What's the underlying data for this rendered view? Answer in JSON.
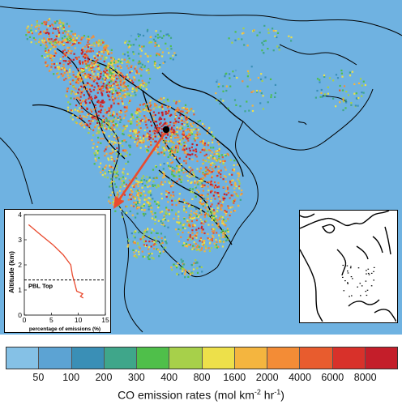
{
  "colors": {
    "ocean": "#6fb2e1",
    "land": "#6fb2e1",
    "coast": "#000000",
    "arrow": "#e94a2e",
    "profile_line": "#e94a2e"
  },
  "marker": {
    "type": "point-source",
    "color": "#000000"
  },
  "inset_profile": {
    "ylabel": "Altitude (km)",
    "xlabel": "percentage of emissions (%)",
    "pbl_label": "PBL Top",
    "x_ticks": [
      "0",
      "5",
      "10",
      "15"
    ],
    "y_ticks": [
      "0",
      "1",
      "2",
      "3",
      "4"
    ],
    "xlim": [
      0,
      15
    ],
    "ylim": [
      0,
      4
    ],
    "pbl_altitude_km": 1.4,
    "profile_points": [
      {
        "x": 0.8,
        "y": 3.6
      },
      {
        "x": 3.0,
        "y": 3.2
      },
      {
        "x": 5.3,
        "y": 2.8
      },
      {
        "x": 7.2,
        "y": 2.4
      },
      {
        "x": 8.6,
        "y": 2.0
      },
      {
        "x": 8.9,
        "y": 1.6
      },
      {
        "x": 9.4,
        "y": 1.2
      },
      {
        "x": 9.7,
        "y": 0.95
      },
      {
        "x": 10.8,
        "y": 0.85
      },
      {
        "x": 10.4,
        "y": 0.75
      },
      {
        "x": 10.9,
        "y": 0.68
      }
    ]
  },
  "colorbar": {
    "title_main": "CO emission rates (mol km",
    "title_exp1": "-2",
    "title_mid": " hr",
    "title_exp2": "-1",
    "title_end": ")",
    "tick_labels": [
      "50",
      "100",
      "200",
      "300",
      "400",
      "800",
      "1600",
      "2000",
      "4000",
      "6000",
      "8000"
    ],
    "swatch_colors": [
      "#85c1e6",
      "#5ca3d3",
      "#3a8fb6",
      "#3fa68a",
      "#4fbf4a",
      "#a7d04a",
      "#ede04a",
      "#f4b53f",
      "#f38c36",
      "#e85c2e",
      "#d8312a",
      "#c41e2a"
    ]
  },
  "chart_data": {
    "type": "line",
    "title": "",
    "xlabel": "percentage of emissions (%)",
    "ylabel": "Altitude (km)",
    "xlim": [
      0,
      15
    ],
    "ylim": [
      0,
      4
    ],
    "series": [
      {
        "values": [
          [
            0.8,
            3.6
          ],
          [
            3.0,
            3.2
          ],
          [
            5.3,
            2.8
          ],
          [
            7.2,
            2.4
          ],
          [
            8.6,
            2.0
          ],
          [
            8.9,
            1.6
          ],
          [
            9.4,
            1.2
          ],
          [
            9.7,
            0.95
          ],
          [
            10.8,
            0.85
          ],
          [
            10.4,
            0.75
          ],
          [
            10.9,
            0.68
          ]
        ]
      }
    ],
    "annotations": [
      "PBL Top"
    ]
  }
}
